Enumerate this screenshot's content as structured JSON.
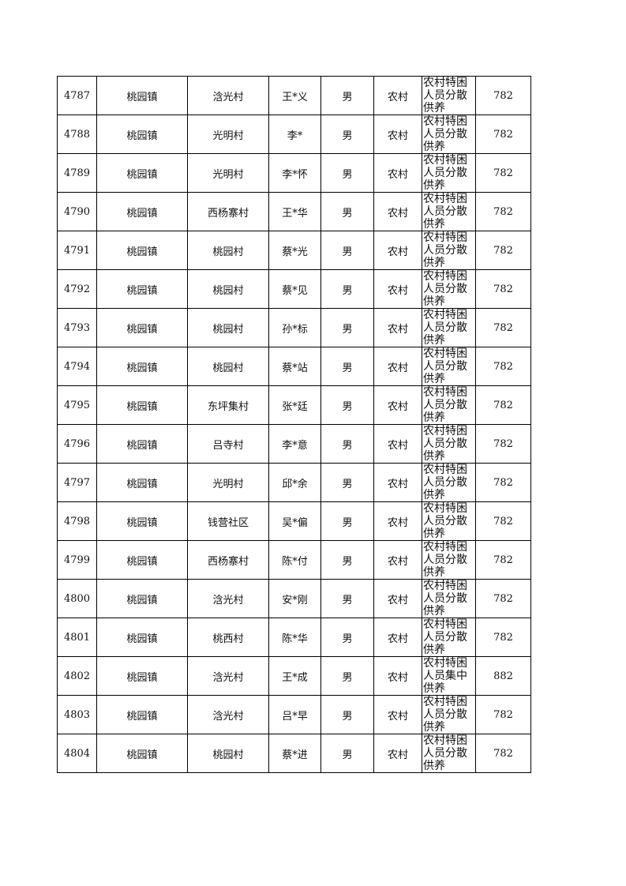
{
  "table": {
    "rows": [
      [
        "4787",
        "桃园镇",
        "浛光村",
        "王*义",
        "男",
        "农村",
        "农村特困人员分散供养",
        "782"
      ],
      [
        "4788",
        "桃园镇",
        "光明村",
        "李*",
        "男",
        "农村",
        "农村特困人员分散供养",
        "782"
      ],
      [
        "4789",
        "桃园镇",
        "光明村",
        "李*怀",
        "男",
        "农村",
        "农村特困人员分散供养",
        "782"
      ],
      [
        "4790",
        "桃园镇",
        "西杨寨村",
        "王*华",
        "男",
        "农村",
        "农村特困人员分散供养",
        "782"
      ],
      [
        "4791",
        "桃园镇",
        "桃园村",
        "蔡*光",
        "男",
        "农村",
        "农村特困人员分散供养",
        "782"
      ],
      [
        "4792",
        "桃园镇",
        "桃园村",
        "蔡*见",
        "男",
        "农村",
        "农村特困人员分散供养",
        "782"
      ],
      [
        "4793",
        "桃园镇",
        "桃园村",
        "孙*标",
        "男",
        "农村",
        "农村特困人员分散供养",
        "782"
      ],
      [
        "4794",
        "桃园镇",
        "桃园村",
        "蔡*站",
        "男",
        "农村",
        "农村特困人员分散供养",
        "782"
      ],
      [
        "4795",
        "桃园镇",
        "东坪集村",
        "张*廷",
        "男",
        "农村",
        "农村特困人员分散供养",
        "782"
      ],
      [
        "4796",
        "桃园镇",
        "吕寺村",
        "李*意",
        "男",
        "农村",
        "农村特困人员分散供养",
        "782"
      ],
      [
        "4797",
        "桃园镇",
        "光明村",
        "邱*余",
        "男",
        "农村",
        "农村特困人员分散供养",
        "782"
      ],
      [
        "4798",
        "桃园镇",
        "钱营社区",
        "吴*偏",
        "男",
        "农村",
        "农村特困人员分散供养",
        "782"
      ],
      [
        "4799",
        "桃园镇",
        "西杨寨村",
        "陈*付",
        "男",
        "农村",
        "农村特困人员分散供养",
        "782"
      ],
      [
        "4800",
        "桃园镇",
        "浛光村",
        "安*刚",
        "男",
        "农村",
        "农村特困人员分散供养",
        "782"
      ],
      [
        "4801",
        "桃园镇",
        "桃西村",
        "陈*华",
        "男",
        "农村",
        "农村特困人员分散供养",
        "782"
      ],
      [
        "4802",
        "桃园镇",
        "浛光村",
        "王*成",
        "男",
        "农村",
        "农村特困人员集中供养",
        "882"
      ],
      [
        "4803",
        "桃园镇",
        "浛光村",
        "吕*早",
        "男",
        "农村",
        "农村特困人员分散供养",
        "782"
      ],
      [
        "4804",
        "桃园镇",
        "桃园村",
        "蔡*进",
        "男",
        "农村",
        "农村特困人员分散供养",
        "782"
      ]
    ]
  }
}
